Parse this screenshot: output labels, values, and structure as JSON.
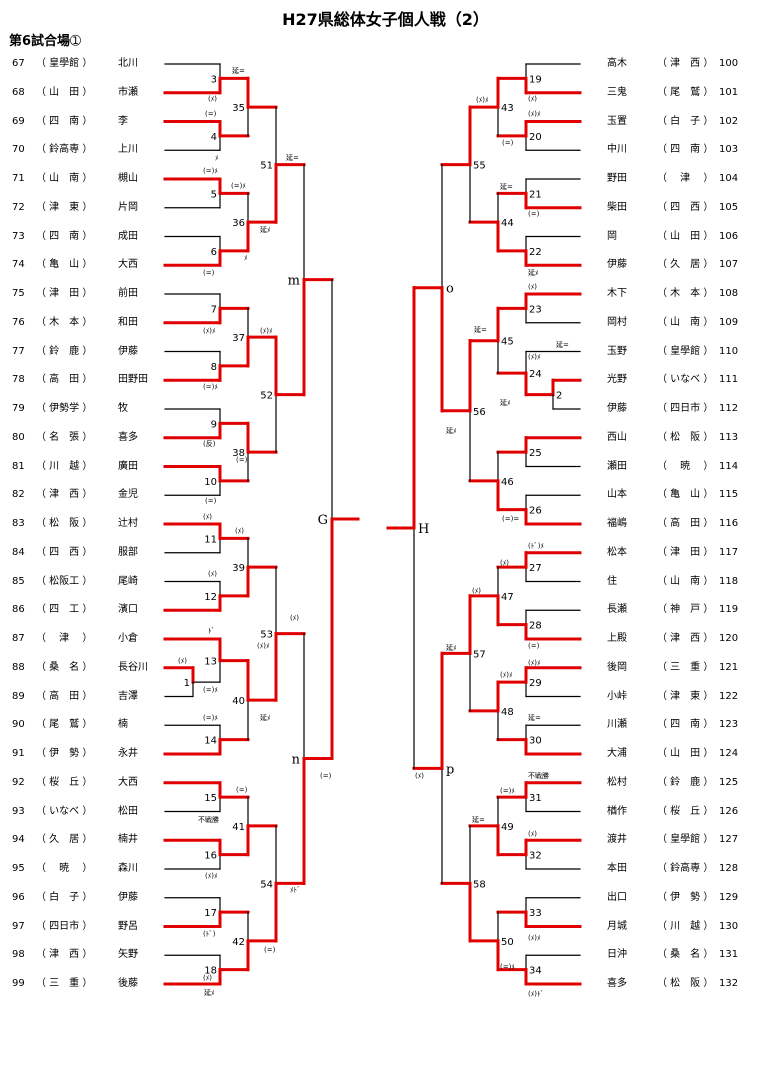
{
  "title": "H27県総体女子個人戦（2）",
  "venue": "第6試合場➀",
  "left_players": [
    {
      "no": "67",
      "school": "（ 皇學館 ）",
      "name": "北川"
    },
    {
      "no": "68",
      "school": "（ 山　田 ）",
      "name": "市瀬"
    },
    {
      "no": "69",
      "school": "（ 四　南 ）",
      "name": "李"
    },
    {
      "no": "70",
      "school": "（ 鈴高専 ）",
      "name": "上川"
    },
    {
      "no": "71",
      "school": "（ 山　南 ）",
      "name": "槻山"
    },
    {
      "no": "72",
      "school": "（ 津　東 ）",
      "name": "片岡"
    },
    {
      "no": "73",
      "school": "（ 四　南 ）",
      "name": "成田"
    },
    {
      "no": "74",
      "school": "（ 亀　山 ）",
      "name": "大西"
    },
    {
      "no": "75",
      "school": "（ 津　田 ）",
      "name": "前田"
    },
    {
      "no": "76",
      "school": "（ 木　本 ）",
      "name": "和田"
    },
    {
      "no": "77",
      "school": "（ 鈴　鹿 ）",
      "name": "伊藤"
    },
    {
      "no": "78",
      "school": "（ 高　田 ）",
      "name": "田野田"
    },
    {
      "no": "79",
      "school": "（ 伊勢学 ）",
      "name": "牧"
    },
    {
      "no": "80",
      "school": "（ 名　張 ）",
      "name": "喜多"
    },
    {
      "no": "81",
      "school": "（ 川　越 ）",
      "name": "廣田"
    },
    {
      "no": "82",
      "school": "（ 津　西 ）",
      "name": "金児"
    },
    {
      "no": "83",
      "school": "（ 松　阪 ）",
      "name": "辻村"
    },
    {
      "no": "84",
      "school": "（ 四　西 ）",
      "name": "服部"
    },
    {
      "no": "85",
      "school": "（ 松阪工 ）",
      "name": "尾崎"
    },
    {
      "no": "86",
      "school": "（ 四　工 ）",
      "name": "濱口"
    },
    {
      "no": "87",
      "school": "（　 津　 ）",
      "name": "小倉"
    },
    {
      "no": "88",
      "school": "（ 桑　名 ）",
      "name": "長谷川"
    },
    {
      "no": "89",
      "school": "（ 高　田 ）",
      "name": "吉澤"
    },
    {
      "no": "90",
      "school": "（ 尾　鷲 ）",
      "name": "楠"
    },
    {
      "no": "91",
      "school": "（ 伊　勢 ）",
      "name": "永井"
    },
    {
      "no": "92",
      "school": "（ 桜　丘 ）",
      "name": "大西"
    },
    {
      "no": "93",
      "school": "（ いなべ ）",
      "name": "松田"
    },
    {
      "no": "94",
      "school": "（ 久　居 ）",
      "name": "楠井"
    },
    {
      "no": "95",
      "school": "（　 暁　 ）",
      "name": "森川"
    },
    {
      "no": "96",
      "school": "（ 白　子 ）",
      "name": "伊藤"
    },
    {
      "no": "97",
      "school": "（ 四日市 ）",
      "name": "野呂"
    },
    {
      "no": "98",
      "school": "（ 津　西 ）",
      "name": "矢野"
    },
    {
      "no": "99",
      "school": "（ 三　重 ）",
      "name": "後藤"
    }
  ],
  "right_players": [
    {
      "no": "100",
      "school": "（ 津　西 ）",
      "name": "高木"
    },
    {
      "no": "101",
      "school": "（ 尾　鷲 ）",
      "name": "三鬼"
    },
    {
      "no": "102",
      "school": "（ 白　子 ）",
      "name": "玉置"
    },
    {
      "no": "103",
      "school": "（ 四　南 ）",
      "name": "中川"
    },
    {
      "no": "104",
      "school": "（　 津　 ）",
      "name": "野田"
    },
    {
      "no": "105",
      "school": "（ 四　西 ）",
      "name": "柴田"
    },
    {
      "no": "106",
      "school": "（ 山　田 ）",
      "name": "岡"
    },
    {
      "no": "107",
      "school": "（ 久　居 ）",
      "name": "伊藤"
    },
    {
      "no": "108",
      "school": "（ 木　本 ）",
      "name": "木下"
    },
    {
      "no": "109",
      "school": "（ 山　南 ）",
      "name": "岡村"
    },
    {
      "no": "110",
      "school": "（ 皇學館 ）",
      "name": "玉野"
    },
    {
      "no": "111",
      "school": "（ いなべ ）",
      "name": "光野"
    },
    {
      "no": "112",
      "school": "（ 四日市 ）",
      "name": "伊藤"
    },
    {
      "no": "113",
      "school": "（ 松　阪 ）",
      "name": "西山"
    },
    {
      "no": "114",
      "school": "（　 暁　 ）",
      "name": "瀬田"
    },
    {
      "no": "115",
      "school": "（ 亀　山 ）",
      "name": "山本"
    },
    {
      "no": "116",
      "school": "（ 高　田 ）",
      "name": "福嶋"
    },
    {
      "no": "117",
      "school": "（ 津　田 ）",
      "name": "松本"
    },
    {
      "no": "118",
      "school": "（ 山　南 ）",
      "name": "住"
    },
    {
      "no": "119",
      "school": "（ 神　戸 ）",
      "name": "長瀬"
    },
    {
      "no": "120",
      "school": "（ 津　西 ）",
      "name": "上殿"
    },
    {
      "no": "121",
      "school": "（ 三　重 ）",
      "name": "後岡"
    },
    {
      "no": "122",
      "school": "（ 津　東 ）",
      "name": "小峠"
    },
    {
      "no": "123",
      "school": "（ 四　南 ）",
      "name": "川瀬"
    },
    {
      "no": "124",
      "school": "（ 山　田 ）",
      "name": "大浦"
    },
    {
      "no": "125",
      "school": "（ 鈴　鹿 ）",
      "name": "松村"
    },
    {
      "no": "126",
      "school": "（ 桜　丘 ）",
      "name": "楢作"
    },
    {
      "no": "127",
      "school": "（ 皇學館 ）",
      "name": "渡井"
    },
    {
      "no": "128",
      "school": "（ 鈴高専 ）",
      "name": "本田"
    },
    {
      "no": "129",
      "school": "（ 伊　勢 ）",
      "name": "出口"
    },
    {
      "no": "130",
      "school": "（ 川　越 ）",
      "name": "月城"
    },
    {
      "no": "131",
      "school": "（ 桑　名 ）",
      "name": "日沖"
    },
    {
      "no": "132",
      "school": "（ 松　阪 ）",
      "name": "喜多"
    }
  ],
  "finals_labels": {
    "m": "m",
    "n": "n",
    "o": "o",
    "p": "p",
    "G": "G",
    "H": "H"
  },
  "annotations": [
    "延=",
    "(ﾒ)",
    "(=)",
    "(=)ﾒ",
    "ﾒ",
    "延ﾒ",
    "(ﾒ)ﾒ",
    "(反)",
    "(ﾄﾞ)",
    "ﾄﾞ",
    "(ﾄﾞ)ﾒ",
    "(ﾒ)ﾄﾞ",
    "(=)=",
    "ﾒﾄﾞ",
    "不戦勝"
  ],
  "colors": {
    "win": "#e00000",
    "line": "#000000"
  }
}
